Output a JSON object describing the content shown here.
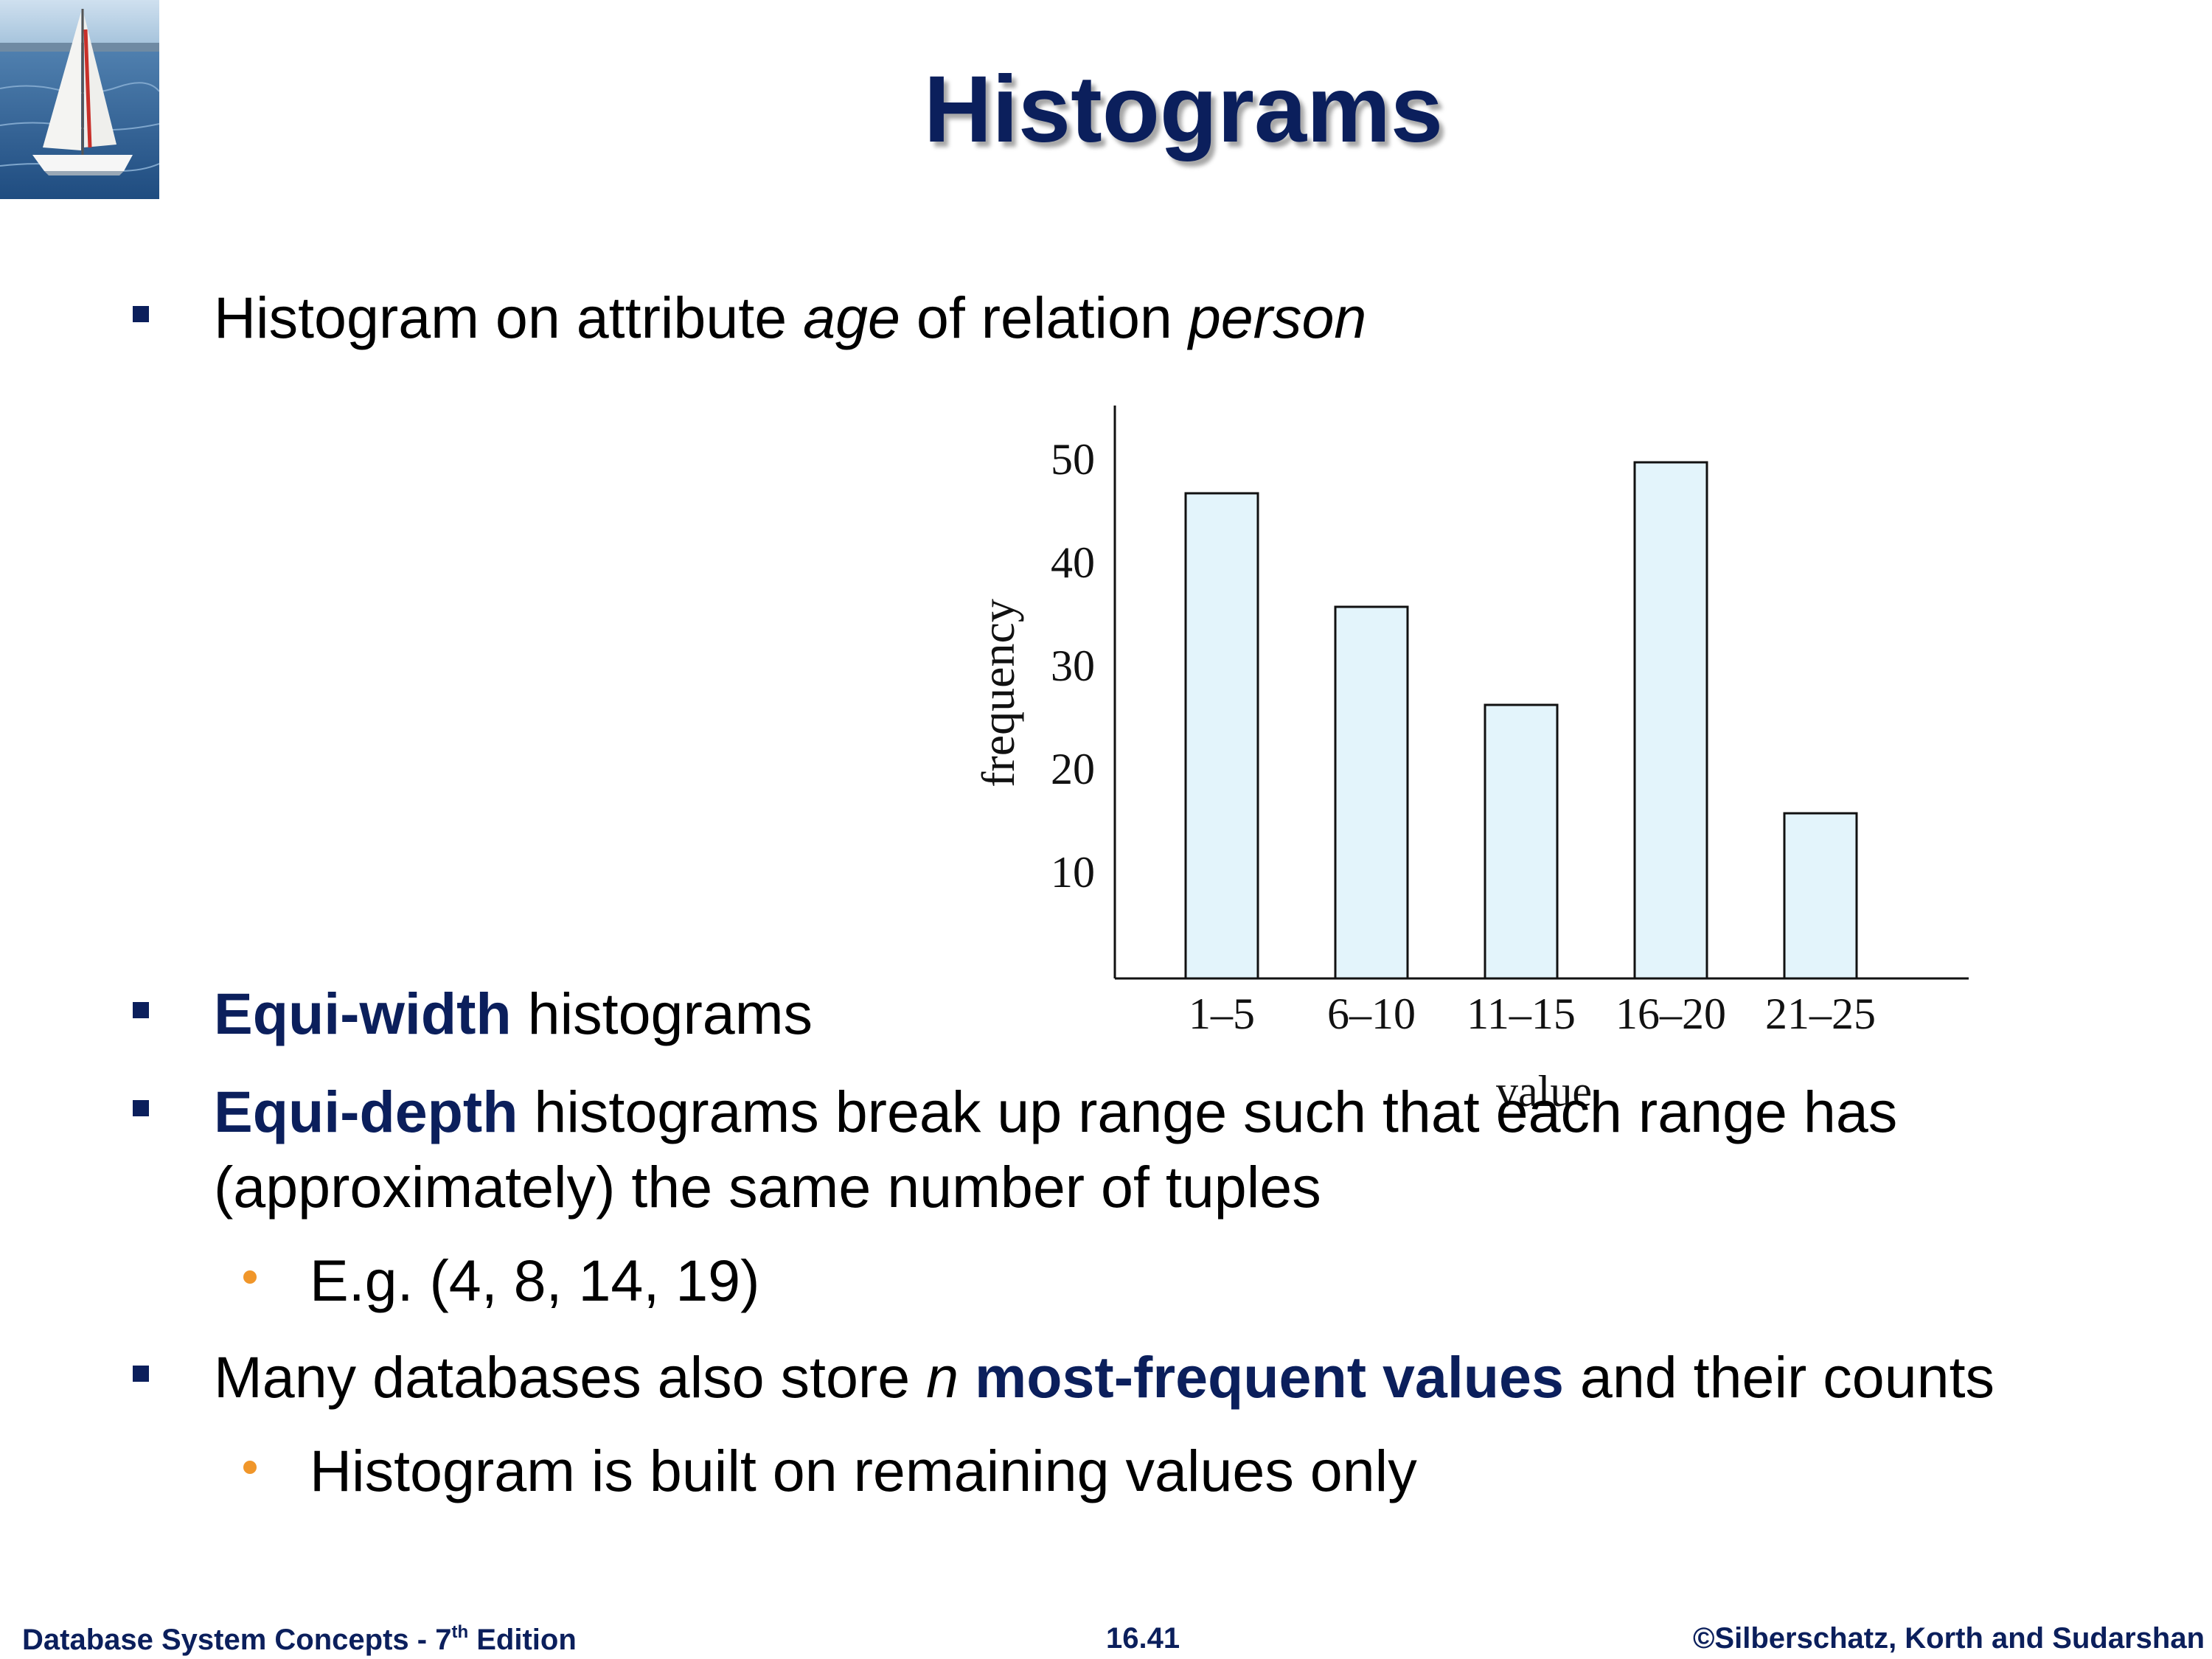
{
  "title": "Histograms",
  "bullets": {
    "b1": {
      "text_a": "Histogram on attribute ",
      "italic_a": "age",
      "text_b": " of relation ",
      "italic_b": "person"
    },
    "b2": {
      "kw": "Equi-width",
      "text": " histograms"
    },
    "b3": {
      "kw": "Equi-depth",
      "text": " histograms break up range such that each range has",
      "text2": "(approximately) the same number of tuples"
    },
    "b3_sub": "E.g. (4, 8, 14, 19)",
    "b4": {
      "text_a": "Many databases also store ",
      "italic": "n",
      "kw": "most-frequent values",
      "text_b": " and their counts"
    },
    "b4_sub": "Histogram is built on remaining values only"
  },
  "chart_data": {
    "type": "bar",
    "categories": [
      "1–5",
      "6–10",
      "11–15",
      "16–20",
      "21–25"
    ],
    "values": [
      47,
      36,
      26.5,
      50,
      16
    ],
    "yticks": [
      "10",
      "20",
      "30",
      "40",
      "50"
    ],
    "ylim": [
      0,
      55
    ],
    "xlabel": "value",
    "ylabel": "frequency",
    "bar_color": "#e3f4fb"
  },
  "footer": {
    "left": "Database System Concepts - 7",
    "left_sup": "th",
    "left_tail": " Edition",
    "center": "16.41",
    "right": "©Silberschatz, Korth and Sudarshan"
  },
  "colors": {
    "title": "#0b1f5c",
    "bullet": "#0b1f5c",
    "sub_bullet": "#f0962a"
  }
}
